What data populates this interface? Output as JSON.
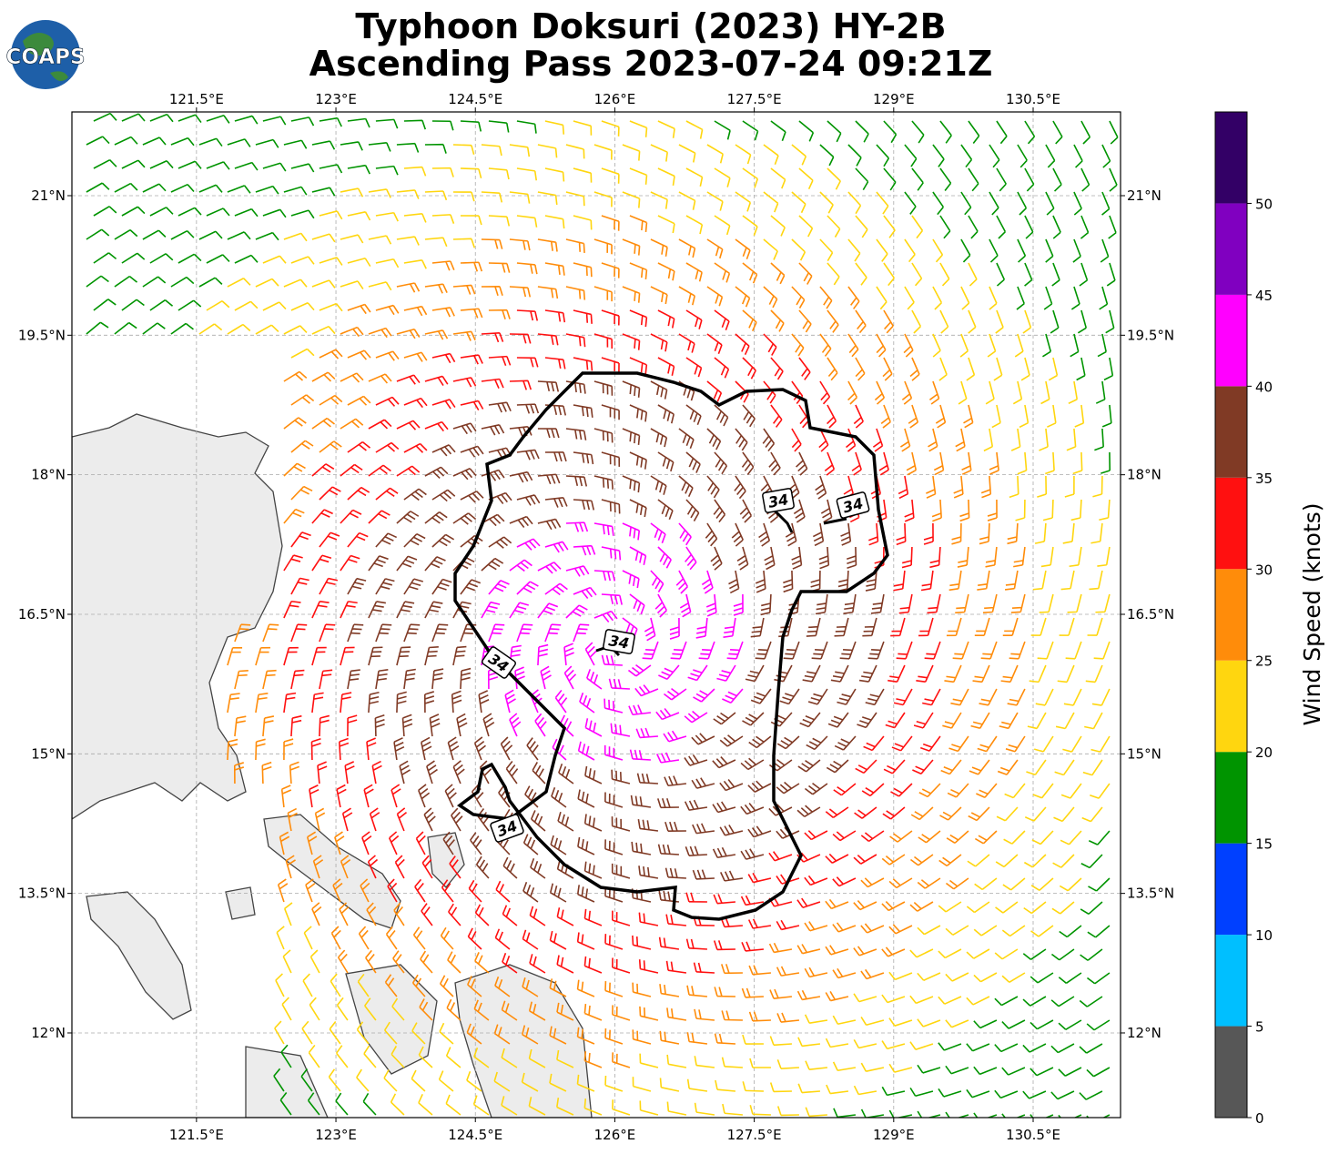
{
  "chart_data": {
    "type": "map",
    "title": [
      "Typhoon Doksuri (2023) HY-2B",
      "Ascending Pass 2023-07-24 09:21Z"
    ],
    "logo": "COAPS",
    "xlim": [
      120.16,
      131.44
    ],
    "ylim": [
      11.09,
      21.9
    ],
    "xticks": [
      {
        "value": 121.5,
        "label": "121.5°E"
      },
      {
        "value": 123,
        "label": "123°E"
      },
      {
        "value": 124.5,
        "label": "124.5°E"
      },
      {
        "value": 126,
        "label": "126°E"
      },
      {
        "value": 127.5,
        "label": "127.5°E"
      },
      {
        "value": 129,
        "label": "129°E"
      },
      {
        "value": 130.5,
        "label": "130.5°E"
      }
    ],
    "yticks": [
      {
        "value": 12,
        "label": "12°N"
      },
      {
        "value": 13.5,
        "label": "13.5°N"
      },
      {
        "value": 15,
        "label": "15°N"
      },
      {
        "value": 16.5,
        "label": "16.5°N"
      },
      {
        "value": 18,
        "label": "18°N"
      },
      {
        "value": 19.5,
        "label": "19.5°N"
      },
      {
        "value": 21,
        "label": "21°N"
      }
    ],
    "grid": true,
    "contour_labels": [
      "34",
      "34",
      "34",
      "34",
      "34"
    ],
    "colorbar": {
      "label": "Wind Speed (knots)",
      "bounds": [
        0,
        5,
        10,
        15,
        20,
        25,
        30,
        35,
        40,
        45,
        50,
        55
      ],
      "colors": [
        "#575757",
        "#00bfff",
        "#0040ff",
        "#009400",
        "#ffd60f",
        "#ff8c0a",
        "#ff1010",
        "#803a25",
        "#ff00ff",
        "#8000c0",
        "#330066"
      ],
      "ticks": [
        0,
        5,
        10,
        15,
        20,
        25,
        30,
        35,
        40,
        45,
        50
      ]
    }
  }
}
